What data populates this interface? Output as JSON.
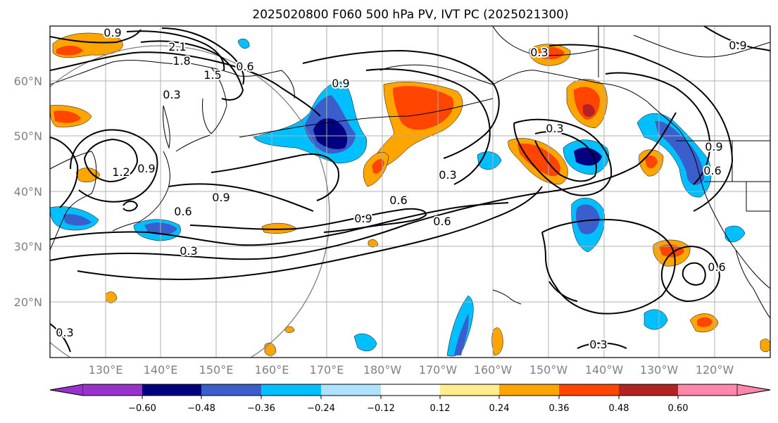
{
  "title": "2025020800 F060 500 hPa PV, IVT PC (2025021300)",
  "lat_labels": [
    "60°N",
    "50°N",
    "40°N",
    "30°N",
    "20°N"
  ],
  "lon_labels": [
    "130°E",
    "140°E",
    "150°E",
    "160°E",
    "170°E",
    "180°W",
    "170°W",
    "160°W",
    "150°W",
    "140°W",
    "130°W",
    "120°W"
  ],
  "contour_labels": [
    "0.9",
    "2.1",
    "1.8",
    "1.5",
    "0.6",
    "0.3",
    "1.2",
    "0.9",
    "0.9",
    "0.6",
    "0.3",
    "0.3",
    "0.3",
    "0.9",
    "0.6",
    "0.9",
    "0.6",
    "0.3",
    "0.9",
    "0.6",
    "0.6",
    "0.3",
    "0.3",
    "0.9"
  ],
  "colorbar": {
    "ticks": [
      "−0.60",
      "−0.48",
      "−0.36",
      "−0.24",
      "−0.12",
      "0.12",
      "0.24",
      "0.36",
      "0.48",
      "0.60"
    ],
    "colors": {
      "under": "#9932cc",
      "bins": [
        "#000080",
        "#3a5fcd",
        "#00bfff",
        "#b0e2ff",
        "#ffffff",
        "#ffec8b",
        "#ffa500",
        "#ff4500",
        "#b22222"
      ],
      "over": "#ff88aa"
    }
  },
  "colors": {
    "neg_light": "#00bfff",
    "neg_mid": "#3a5fcd",
    "neg_dark": "#000080",
    "pos_light": "#ffec8b",
    "pos_mid": "#ffa500",
    "pos_dark": "#ff4500",
    "pos_max": "#b22222",
    "circle": "#808080"
  }
}
